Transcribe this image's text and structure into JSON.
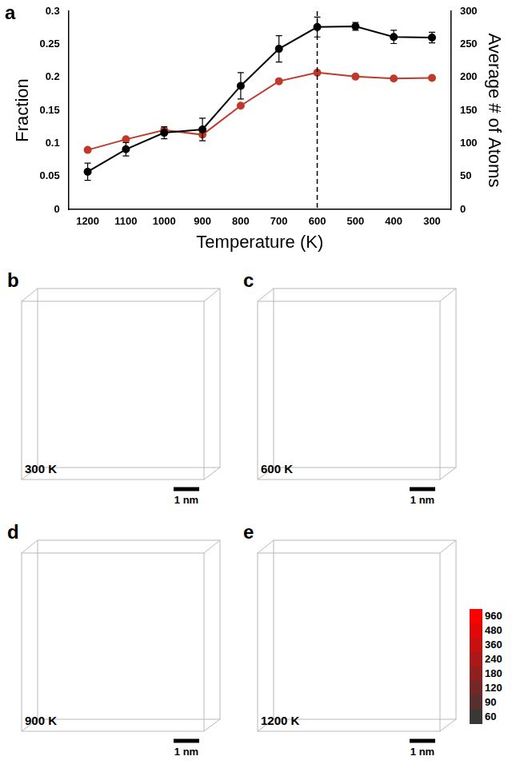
{
  "chart_data": {
    "type": "line",
    "panel_letter": "a",
    "x_label": "Temperature (K)",
    "y_label": "Fraction",
    "y2_label": "Average # of Atoms",
    "categories": [
      "1200",
      "1100",
      "1000",
      "900",
      "800",
      "700",
      "600",
      "500",
      "400",
      "300"
    ],
    "series": [
      {
        "name": "Fraction",
        "color": "#000000",
        "marker": "circle",
        "axis": "y",
        "values": [
          0.057,
          0.091,
          0.116,
          0.121,
          0.187,
          0.243,
          0.276,
          0.277,
          0.261,
          0.26
        ],
        "errors": [
          0.013,
          0.01,
          0.009,
          0.017,
          0.02,
          0.02,
          0.015,
          0.006,
          0.01,
          0.008
        ]
      },
      {
        "name": "Average # of Atoms",
        "color": "#c0392b",
        "marker": "circle",
        "axis": "y2",
        "values": [
          90,
          106,
          120,
          113,
          157,
          194,
          207,
          201,
          198,
          199
        ]
      }
    ],
    "ylim": [
      0,
      0.3
    ],
    "yticks": [
      0,
      0.05,
      0.1,
      0.15,
      0.2,
      0.25,
      0.3
    ],
    "y2lim": [
      0,
      300
    ],
    "y2ticks": [
      0,
      50,
      100,
      150,
      200,
      250,
      300
    ],
    "marker_line_at": "600",
    "grid": false
  },
  "panels": [
    {
      "letter": "b",
      "label": "300 K",
      "scale_bar": "1 nm"
    },
    {
      "letter": "c",
      "label": "600 K",
      "scale_bar": "1 nm"
    },
    {
      "letter": "d",
      "label": "900 K",
      "scale_bar": "1 nm"
    },
    {
      "letter": "e",
      "label": "1200 K",
      "scale_bar": "1 nm"
    }
  ],
  "color_bar": {
    "ticks": [
      960,
      480,
      360,
      240,
      180,
      120,
      90,
      60
    ]
  }
}
